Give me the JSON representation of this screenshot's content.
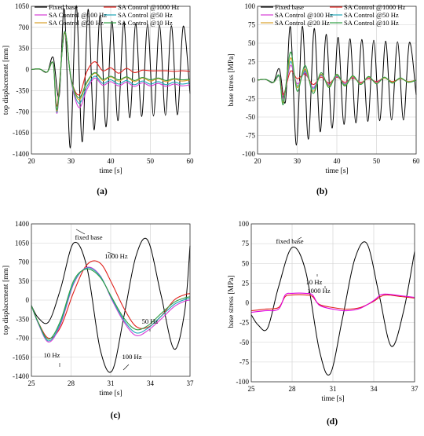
{
  "chart_data": [
    {
      "type": "line",
      "panel_label": "(a)",
      "xlabel": "time [s]",
      "ylabel": "top displacement [mm]",
      "xlim": [
        20,
        60
      ],
      "ylim": [
        -1400,
        1050
      ],
      "xticks": [
        20,
        30,
        40,
        50,
        60
      ],
      "yticks": [
        -1400,
        -1050,
        -700,
        -350,
        0,
        350,
        700,
        1050
      ],
      "grid": true,
      "legend": "top",
      "series": [
        {
          "name": "Fixed base",
          "color": "#000000",
          "x": [
            20,
            22,
            24,
            25.5,
            27,
            28.3,
            29.8,
            31.3,
            32.8,
            34.3,
            35.8,
            37.3,
            38.8,
            40.3,
            41.8,
            43.3,
            44.8,
            46.3,
            47.8,
            49.3,
            50.8,
            52.3,
            53.8,
            55.3,
            56.8,
            58.3,
            60
          ],
          "y": [
            0,
            10,
            -40,
            200,
            -450,
            1000,
            -1300,
            1060,
            -1200,
            1000,
            -1000,
            900,
            -950,
            800,
            -850,
            780,
            -800,
            760,
            -780,
            750,
            -770,
            740,
            -760,
            730,
            -750,
            720,
            -400
          ]
        },
        {
          "name": "SA Control @1000 Hz",
          "color": "#e0201b",
          "x": [
            20,
            22,
            24,
            25.5,
            26.5,
            28.3,
            30,
            32,
            34,
            36,
            38,
            40,
            42,
            44,
            46,
            48,
            50,
            52,
            54,
            56,
            58,
            60
          ],
          "y": [
            0,
            10,
            -40,
            100,
            -600,
            600,
            -150,
            -420,
            -30,
            130,
            -20,
            30,
            -60,
            20,
            -50,
            -10,
            -20,
            -20,
            -20,
            -30,
            -20,
            -30
          ]
        },
        {
          "name": "SA Control @100 Hz",
          "color": "#d63cd6",
          "x": [
            20,
            22,
            24,
            25.5,
            26.5,
            28.3,
            30,
            32,
            34,
            36,
            38,
            40,
            42,
            44,
            46,
            48,
            50,
            52,
            54,
            56,
            58,
            60
          ],
          "y": [
            0,
            10,
            -40,
            100,
            -720,
            630,
            -180,
            -630,
            -330,
            -140,
            -260,
            -200,
            -270,
            -210,
            -280,
            -220,
            -270,
            -230,
            -280,
            -240,
            -270,
            -250
          ]
        },
        {
          "name": "SA Control @50 Hz",
          "color": "#1fa7b8",
          "x": [
            20,
            22,
            24,
            25.5,
            26.5,
            28.3,
            30,
            32,
            34,
            36,
            38,
            40,
            42,
            44,
            46,
            48,
            50,
            52,
            54,
            56,
            58,
            60
          ],
          "y": [
            0,
            10,
            -40,
            100,
            -700,
            630,
            -170,
            -560,
            -280,
            -110,
            -230,
            -170,
            -240,
            -180,
            -250,
            -190,
            -240,
            -200,
            -250,
            -210,
            -240,
            -220
          ]
        },
        {
          "name": "SA Control @20 Hz",
          "color": "#d9a02a",
          "x": [
            20,
            22,
            24,
            25.5,
            26.5,
            28.3,
            30,
            32,
            34,
            36,
            38,
            40,
            42,
            44,
            46,
            48,
            50,
            52,
            54,
            56,
            58,
            60
          ],
          "y": [
            0,
            10,
            -40,
            100,
            -680,
            620,
            -160,
            -500,
            -220,
            -60,
            -180,
            -120,
            -190,
            -130,
            -200,
            -140,
            -190,
            -150,
            -200,
            -160,
            -190,
            -170
          ]
        },
        {
          "name": "SA Control @10 Hz",
          "color": "#2f9e44",
          "x": [
            20,
            22,
            24,
            25.5,
            26.5,
            28.3,
            30,
            32,
            34,
            36,
            38,
            40,
            42,
            44,
            46,
            48,
            50,
            52,
            54,
            56,
            58,
            60
          ],
          "y": [
            0,
            10,
            -40,
            100,
            -660,
            610,
            -150,
            -470,
            -200,
            -50,
            -160,
            -110,
            -170,
            -120,
            -180,
            -130,
            -170,
            -140,
            -180,
            -150,
            -170,
            -160
          ]
        }
      ]
    },
    {
      "type": "line",
      "panel_label": "(b)",
      "xlabel": "time [s]",
      "ylabel": "base stress [MPa]",
      "xlim": [
        20,
        60
      ],
      "ylim": [
        -100,
        100
      ],
      "xticks": [
        20,
        30,
        40,
        50,
        60
      ],
      "yticks": [
        -100,
        -75,
        -50,
        -25,
        0,
        25,
        50,
        75,
        100
      ],
      "grid": true,
      "legend": "top",
      "series": [
        {
          "name": "Fixed base",
          "color": "#000000",
          "x": [
            20,
            22,
            24,
            25.5,
            27,
            28.3,
            29.8,
            31.3,
            32.8,
            34.3,
            35.8,
            37.3,
            38.8,
            40.3,
            41.8,
            43.3,
            44.8,
            46.3,
            47.8,
            49.3,
            50.8,
            52.3,
            53.8,
            55.3,
            56.8,
            58.3,
            60
          ],
          "y": [
            0,
            1,
            -3,
            15,
            -30,
            72,
            -88,
            73,
            -80,
            70,
            -70,
            62,
            -65,
            58,
            -60,
            56,
            -58,
            55,
            -56,
            54,
            -55,
            53,
            -54,
            52,
            -54,
            51,
            -20
          ]
        },
        {
          "name": "SA Control @1000 Hz",
          "color": "#e0201b",
          "x": [
            20,
            22,
            24,
            25.5,
            26.5,
            28.3,
            30,
            32,
            34,
            36,
            38,
            40,
            42,
            44,
            46,
            48,
            50,
            52,
            54,
            56,
            58,
            60
          ],
          "y": [
            0,
            1,
            -3,
            5,
            -20,
            12,
            2,
            8,
            -6,
            4,
            -4,
            4,
            -3,
            3,
            -3,
            2,
            -2,
            3,
            -2,
            2,
            -2,
            0
          ]
        },
        {
          "name": "SA Control @100 Hz",
          "color": "#d63cd6",
          "x": [
            20,
            22,
            24,
            25.5,
            26.5,
            28.3,
            30,
            32,
            34,
            36,
            38,
            40,
            42,
            44,
            46,
            48,
            50,
            52,
            54,
            56,
            58,
            60
          ],
          "y": [
            0,
            1,
            -3,
            5,
            -25,
            20,
            -5,
            10,
            -10,
            6,
            -6,
            5,
            -5,
            4,
            -4,
            3,
            -3,
            3,
            -3,
            2,
            -2,
            0
          ]
        },
        {
          "name": "SA Control @50 Hz",
          "color": "#1fa7b8",
          "x": [
            20,
            22,
            24,
            25.5,
            26.5,
            28.3,
            30,
            32,
            34,
            36,
            38,
            40,
            42,
            44,
            46,
            48,
            50,
            52,
            54,
            56,
            58,
            60
          ],
          "y": [
            0,
            1,
            -3,
            5,
            -28,
            25,
            -8,
            12,
            -12,
            7,
            -7,
            6,
            -6,
            5,
            -5,
            4,
            -4,
            3,
            -3,
            2,
            -2,
            0
          ]
        },
        {
          "name": "SA Control @20 Hz",
          "color": "#d9a02a",
          "x": [
            20,
            22,
            24,
            25.5,
            26.5,
            28.3,
            30,
            32,
            34,
            36,
            38,
            40,
            42,
            44,
            46,
            48,
            50,
            52,
            54,
            56,
            58,
            60
          ],
          "y": [
            0,
            1,
            -3,
            6,
            -30,
            30,
            -10,
            15,
            -15,
            8,
            -8,
            7,
            -7,
            5,
            -5,
            4,
            -4,
            3,
            -3,
            2,
            -2,
            0
          ]
        },
        {
          "name": "SA Control @10 Hz",
          "color": "#2f9e44",
          "x": [
            20,
            22,
            24,
            25.5,
            26.5,
            28.3,
            30,
            32,
            34,
            36,
            38,
            40,
            42,
            44,
            46,
            48,
            50,
            52,
            54,
            56,
            58,
            60
          ],
          "y": [
            0,
            1,
            -3,
            6,
            -33,
            38,
            -15,
            20,
            -18,
            10,
            -10,
            8,
            -8,
            6,
            -6,
            5,
            -5,
            4,
            -4,
            3,
            -3,
            0
          ]
        }
      ]
    },
    {
      "type": "line",
      "panel_label": "(c)",
      "xlabel": "time [s]",
      "ylabel": "top displacement [mm]",
      "xlim": [
        25,
        37
      ],
      "ylim": [
        -1400,
        1400
      ],
      "xticks": [
        25,
        28,
        31,
        34,
        37
      ],
      "yticks": [
        -1400,
        -1050,
        -700,
        -350,
        0,
        350,
        700,
        1050,
        1400
      ],
      "grid": true,
      "annotations": [
        "fixed base",
        "1000 Hz",
        "50 Hz",
        "10 Hz",
        "100 Hz"
      ],
      "series": [
        {
          "name": "fixed base",
          "color": "#000000",
          "x": [
            25,
            25.5,
            26.3,
            27.2,
            28.2,
            29.2,
            30.2,
            31.1,
            32,
            32.9,
            33.8,
            34.8,
            35.8,
            36.6,
            37
          ],
          "y": [
            -100,
            -320,
            -400,
            200,
            1050,
            600,
            -900,
            -1300,
            -300,
            800,
            1100,
            100,
            -900,
            -200,
            1000
          ]
        },
        {
          "name": "1000 Hz",
          "color": "#e0201b",
          "x": [
            25,
            25.5,
            26.3,
            27.2,
            28.2,
            29.2,
            30.2,
            31.1,
            32,
            32.9,
            33.8,
            34.8,
            35.8,
            36.6,
            37
          ],
          "y": [
            -100,
            -400,
            -700,
            -500,
            150,
            650,
            680,
            300,
            -150,
            -480,
            -500,
            -300,
            0,
            100,
            120
          ]
        },
        {
          "name": "100 Hz",
          "color": "#d63cd6",
          "x": [
            25,
            25.5,
            26.3,
            27.2,
            28.2,
            29.2,
            30.2,
            31.1,
            32,
            32.9,
            33.8,
            34.8,
            35.8,
            36.6,
            37
          ],
          "y": [
            -100,
            -420,
            -770,
            -450,
            300,
            600,
            450,
            0,
            -400,
            -650,
            -560,
            -350,
            -120,
            -20,
            0
          ]
        },
        {
          "name": "50 Hz",
          "color": "#1fa7b8",
          "x": [
            25,
            25.5,
            26.3,
            27.2,
            28.2,
            29.2,
            30.2,
            31.1,
            32,
            32.9,
            33.8,
            34.8,
            35.8,
            36.6,
            37
          ],
          "y": [
            -100,
            -410,
            -750,
            -420,
            320,
            590,
            440,
            20,
            -370,
            -600,
            -520,
            -300,
            -80,
            10,
            30
          ]
        },
        {
          "name": "10 Hz",
          "color": "#2f9e44",
          "x": [
            25,
            25.5,
            26.3,
            27.2,
            28.2,
            29.2,
            30.2,
            31.1,
            32,
            32.9,
            33.8,
            34.8,
            35.8,
            36.6,
            37
          ],
          "y": [
            -100,
            -400,
            -720,
            -380,
            360,
            570,
            420,
            40,
            -330,
            -540,
            -470,
            -250,
            -40,
            40,
            60
          ]
        }
      ]
    },
    {
      "type": "line",
      "panel_label": "(d)",
      "xlabel": "time [s]",
      "ylabel": "base stress [MPa]",
      "xlim": [
        25,
        37
      ],
      "ylim": [
        -100,
        100
      ],
      "xticks": [
        25,
        28,
        31,
        34,
        37
      ],
      "yticks": [
        -100,
        -75,
        -50,
        -25,
        0,
        25,
        50,
        75,
        100
      ],
      "grid": true,
      "annotations": [
        "fixed base",
        "10 Hz",
        "1000 Hz"
      ],
      "series": [
        {
          "name": "fixed base",
          "color": "#000000",
          "x": [
            25,
            25.5,
            26.2,
            27,
            28,
            29,
            30,
            30.8,
            31.7,
            32.6,
            33.5,
            34.4,
            35.3,
            36.2,
            37
          ],
          "y": [
            -15,
            -28,
            -32,
            20,
            70,
            40,
            -60,
            -90,
            -20,
            55,
            75,
            10,
            -55,
            -10,
            65
          ]
        },
        {
          "name": "1000 Hz",
          "color": "#e0201b",
          "x": [
            25,
            26,
            27,
            27.5,
            28,
            29,
            29.5,
            30,
            31,
            32,
            33,
            34,
            34.5,
            35,
            36,
            37
          ],
          "y": [
            -10,
            -8,
            -6,
            8,
            10,
            10,
            8,
            -2,
            -6,
            -8,
            -6,
            2,
            8,
            10,
            8,
            6
          ]
        },
        {
          "name": "10 Hz",
          "color": "#e000e0",
          "x": [
            25,
            26,
            27,
            27.5,
            28,
            29,
            29.5,
            30,
            31,
            32,
            33,
            34,
            34.5,
            35,
            36,
            37
          ],
          "y": [
            -12,
            -10,
            -8,
            10,
            12,
            12,
            10,
            -3,
            -8,
            -10,
            -7,
            3,
            10,
            11,
            9,
            7
          ]
        }
      ]
    }
  ]
}
